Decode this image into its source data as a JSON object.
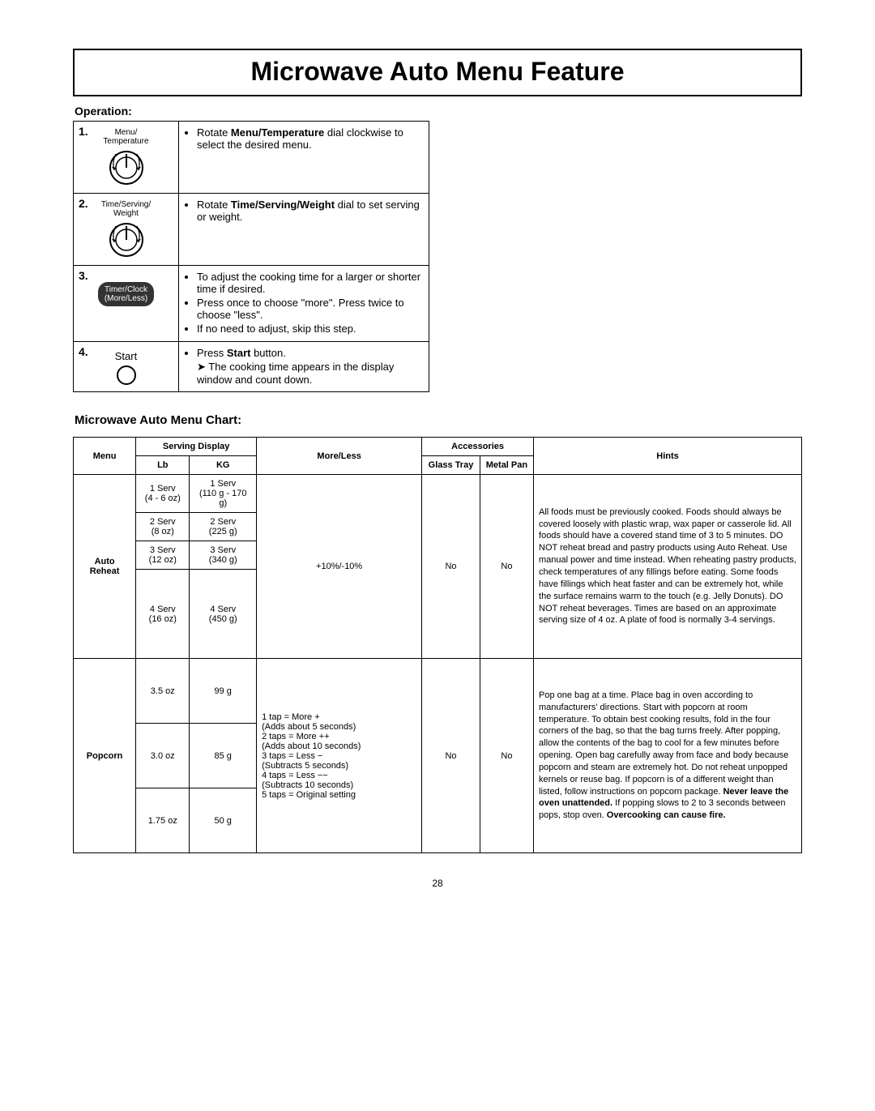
{
  "title": "Microwave Auto Menu Feature",
  "operation_label": "Operation:",
  "steps": [
    {
      "num": "1.",
      "label": "Menu/\nTemperature",
      "kind": "dial",
      "bullets": [
        "Rotate <b>Menu/Temperature</b> dial clockwise to select the desired menu."
      ]
    },
    {
      "num": "2.",
      "label": "Time/Serving/\nWeight",
      "kind": "dial",
      "bullets": [
        "Rotate <b>Time/Serving/Weight</b> dial to set serving or weight."
      ]
    },
    {
      "num": "3.",
      "label": "Timer/Clock\n(More/Less)",
      "kind": "pill",
      "bullets": [
        "To adjust the cooking time for a larger or shorter time if desired.",
        "Press once to choose \"more\". Press twice to choose \"less\".",
        "If no need to adjust, skip this step."
      ]
    },
    {
      "num": "4.",
      "label": "Start",
      "kind": "start",
      "bullets": [
        "Press <b>Start</b> button."
      ],
      "arrow": "The cooking time appears in the display window and count down."
    }
  ],
  "chart_heading": "Microwave Auto Menu Chart:",
  "headers": {
    "menu": "Menu",
    "serving": "Serving Display",
    "lb": "Lb",
    "kg": "KG",
    "moreless": "More/Less",
    "accessories": "Accessories",
    "glass": "Glass Tray",
    "metal": "Metal Pan",
    "hints": "Hints"
  },
  "rows": {
    "auto_reheat": {
      "menu": "Auto Reheat",
      "servings": [
        {
          "lb": "1 Serv\n(4 - 6 oz)",
          "kg": "1 Serv\n(110 g - 170 g)"
        },
        {
          "lb": "2 Serv\n(8 oz)",
          "kg": "2 Serv\n(225 g)"
        },
        {
          "lb": "3 Serv\n(12 oz)",
          "kg": "3 Serv\n(340 g)"
        },
        {
          "lb": "4 Serv\n(16 oz)",
          "kg": "4 Serv\n(450 g)"
        }
      ],
      "moreless": "+10%/-10%",
      "glass": "No",
      "metal": "No",
      "hints": "All foods must be previously cooked. Foods should always be covered loosely with plastic wrap, wax paper or casserole lid. All foods should have a covered stand time of 3 to 5 minutes. DO NOT reheat bread and pastry products using Auto Reheat. Use manual power and time instead. When reheating pastry products, check temperatures of any fillings before eating. Some foods have fillings which heat faster and can be extremely hot, while the surface remains warm to the touch (e.g. Jelly Donuts). DO NOT reheat beverages. Times are based on an approximate serving size of 4 oz. A plate of food is normally 3-4 servings."
    },
    "popcorn": {
      "menu": "Popcorn",
      "servings": [
        {
          "lb": "3.5 oz",
          "kg": "99 g"
        },
        {
          "lb": "3.0 oz",
          "kg": "85 g"
        },
        {
          "lb": "1.75 oz",
          "kg": "50 g"
        }
      ],
      "moreless": "1 tap = More +\n(Adds about 5 seconds)\n2 taps = More ++\n(Adds about 10 seconds)\n3 taps = Less −\n(Subtracts 5 seconds)\n4 taps = Less −−\n(Subtracts 10 seconds)\n5 taps = Original setting",
      "glass": "No",
      "metal": "No",
      "hints": "Pop one bag at a time. Place bag in oven according to manufacturers' directions. Start with popcorn at room temperature. To obtain best cooking results, fold in the four corners of the bag, so that the bag turns freely. After popping, allow the contents of the bag to cool for a few minutes before opening. Open bag carefully away from face and body because popcorn and steam are extremely hot. Do not reheat unpopped kernels or reuse bag. If popcorn is of a different weight than listed, follow instructions on popcorn package. <b>Never leave the oven unattended.</b> If popping slows to 2 to 3 seconds between pops, stop oven. <b>Overcooking can cause fire.</b>"
    }
  },
  "page_number": "28"
}
